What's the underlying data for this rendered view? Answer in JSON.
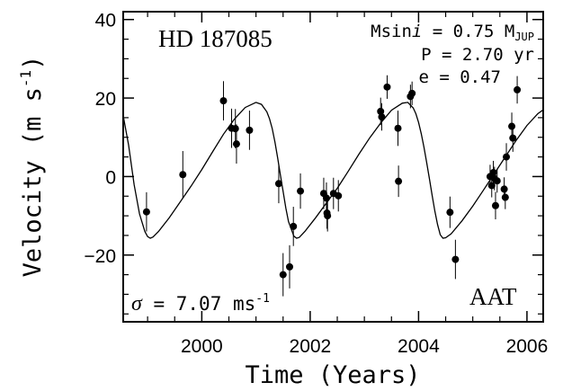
{
  "chart_data": {
    "type": "scatter",
    "title": "",
    "xlabel": "Time (Years)",
    "ylabel_text": "Velocity (m s",
    "ylabel_sup": "-1",
    "ylabel_close": ")",
    "xlim": [
      1998.55,
      2006.3
    ],
    "ylim": [
      -37,
      42
    ],
    "x_ticks": [
      2000,
      2002,
      2004,
      2006
    ],
    "y_ticks": [
      -20,
      0,
      20,
      40
    ],
    "y_tick_labels": [
      "−20",
      "0",
      "20",
      "40"
    ],
    "grid": false,
    "star_name": "HD 187085",
    "instrument": "AAT",
    "annotations": {
      "msini_label": "Msin",
      "msini_italic": "i",
      "msini_value": " = 0.75 M",
      "msini_sub": "JUP",
      "period": "P = 2.70 yr",
      "eccentricity": "e = 0.47",
      "sigma_symbol": "σ",
      "sigma_value": " = 7.07 ms",
      "sigma_sup": "-1"
    },
    "observations": [
      {
        "x": 1998.98,
        "y": -9.0,
        "err": 5.0
      },
      {
        "x": 1999.65,
        "y": 0.5,
        "err": 6.0
      },
      {
        "x": 2000.4,
        "y": 19.3,
        "err": 5.0
      },
      {
        "x": 2000.55,
        "y": 12.3,
        "err": 5.0
      },
      {
        "x": 2000.62,
        "y": 12.2,
        "err": 5.0
      },
      {
        "x": 2000.64,
        "y": 8.3,
        "err": 5.0
      },
      {
        "x": 2000.88,
        "y": 11.8,
        "err": 5.0
      },
      {
        "x": 2001.42,
        "y": -1.8,
        "err": 5.0
      },
      {
        "x": 2001.5,
        "y": -25.0,
        "err": 5.5
      },
      {
        "x": 2001.62,
        "y": -23.0,
        "err": 5.5
      },
      {
        "x": 2001.69,
        "y": -12.7,
        "err": 5.0
      },
      {
        "x": 2001.82,
        "y": -3.7,
        "err": 4.5
      },
      {
        "x": 2002.25,
        "y": -4.3,
        "err": 4.0
      },
      {
        "x": 2002.3,
        "y": -5.5,
        "err": 4.0
      },
      {
        "x": 2002.31,
        "y": -9.3,
        "err": 4.0
      },
      {
        "x": 2002.32,
        "y": -10.0,
        "err": 4.0
      },
      {
        "x": 2002.43,
        "y": -4.3,
        "err": 4.0
      },
      {
        "x": 2002.52,
        "y": -4.9,
        "err": 4.0
      },
      {
        "x": 2003.3,
        "y": 16.6,
        "err": 3.5
      },
      {
        "x": 2003.32,
        "y": 15.2,
        "err": 3.5
      },
      {
        "x": 2003.42,
        "y": 22.8,
        "err": 3.0
      },
      {
        "x": 2003.62,
        "y": 12.3,
        "err": 4.5
      },
      {
        "x": 2003.63,
        "y": -1.2,
        "err": 4.0
      },
      {
        "x": 2003.85,
        "y": 20.4,
        "err": 3.0
      },
      {
        "x": 2003.88,
        "y": 21.2,
        "err": 3.0
      },
      {
        "x": 2004.58,
        "y": -9.1,
        "err": 4.0
      },
      {
        "x": 2004.68,
        "y": -21.1,
        "err": 5.0
      },
      {
        "x": 2005.32,
        "y": 0.0,
        "err": 3.0
      },
      {
        "x": 2005.35,
        "y": -2.3,
        "err": 3.0
      },
      {
        "x": 2005.38,
        "y": 1.0,
        "err": 3.0
      },
      {
        "x": 2005.4,
        "y": -0.5,
        "err": 3.0
      },
      {
        "x": 2005.42,
        "y": -7.4,
        "err": 3.5
      },
      {
        "x": 2005.45,
        "y": -1.1,
        "err": 3.0
      },
      {
        "x": 2005.58,
        "y": -3.2,
        "err": 3.0
      },
      {
        "x": 2005.6,
        "y": -5.3,
        "err": 3.0
      },
      {
        "x": 2005.62,
        "y": 5.0,
        "err": 3.5
      },
      {
        "x": 2005.72,
        "y": 12.8,
        "err": 3.5
      },
      {
        "x": 2005.74,
        "y": 9.8,
        "err": 3.5
      },
      {
        "x": 2005.82,
        "y": 22.1,
        "err": 3.5
      }
    ],
    "model_curve": {
      "x": [
        1998.55,
        1998.65,
        1998.75,
        1998.85,
        1998.95,
        1999.0,
        1999.05,
        1999.1,
        1999.2,
        1999.4,
        1999.6,
        1999.8,
        2000.0,
        2000.2,
        2000.4,
        2000.6,
        2000.8,
        2001.0,
        2001.1,
        2001.2,
        2001.25,
        2001.3,
        2001.35,
        2001.4,
        2001.45,
        2001.5,
        2001.55,
        2001.6,
        2001.7,
        2001.75,
        2001.8,
        2001.9,
        2002.1,
        2002.3,
        2002.5,
        2002.7,
        2002.9,
        2003.1,
        2003.3,
        2003.5,
        2003.7,
        2003.8,
        2003.9,
        2003.95,
        2004.0,
        2004.05,
        2004.1,
        2004.15,
        2004.2,
        2004.25,
        2004.3,
        2004.35,
        2004.4,
        2004.45,
        2004.5,
        2004.6,
        2004.8,
        2005.0,
        2005.2,
        2005.4,
        2005.6,
        2005.8,
        2006.0,
        2006.2,
        2006.3
      ],
      "y": [
        15.5,
        8.0,
        -2.0,
        -9.5,
        -14.0,
        -15.3,
        -15.7,
        -15.4,
        -14.0,
        -10.5,
        -6.5,
        -2.5,
        1.8,
        6.3,
        10.8,
        14.6,
        17.6,
        18.9,
        18.4,
        16.5,
        14.7,
        12.2,
        8.8,
        4.8,
        0.5,
        -3.8,
        -8.0,
        -11.5,
        -15.2,
        -15.7,
        -15.5,
        -14.0,
        -10.5,
        -6.7,
        -3.0,
        1.3,
        5.7,
        9.9,
        13.6,
        16.9,
        18.7,
        18.9,
        17.5,
        16.0,
        13.8,
        10.9,
        7.5,
        3.6,
        -0.6,
        -4.8,
        -8.8,
        -12.2,
        -14.8,
        -15.7,
        -15.6,
        -14.6,
        -11.3,
        -7.5,
        -3.4,
        0.8,
        5.0,
        9.2,
        13.0,
        16.0,
        17.0
      ]
    }
  }
}
